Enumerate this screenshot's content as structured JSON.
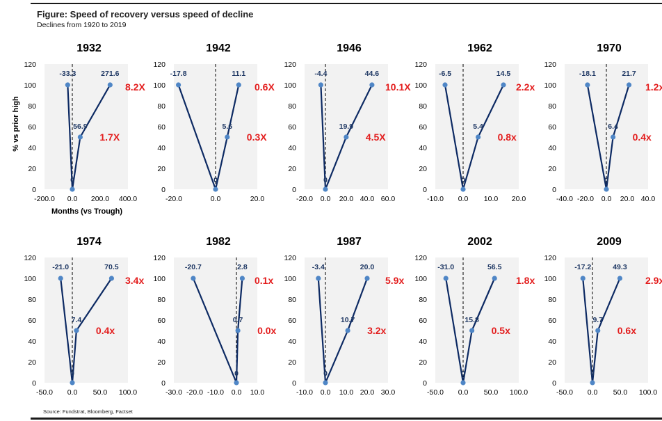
{
  "figure": {
    "title": "Figure: Speed of recovery versus speed of decline",
    "subtitle": "Declines from 1920 to 2019",
    "source": "Source: Fundstrat, Bloomberg, Factset",
    "y_axis_label": "% vs prior high",
    "x_axis_label": "Months (vs Trough)"
  },
  "colors": {
    "line": "#0d2a63",
    "marker": "#4f86c6",
    "ratio_text": "#e31d1d",
    "data_label": "#1f3864",
    "plot_bg": "#f2f2f2"
  },
  "chart_data": [
    {
      "type": "line",
      "title": "1932",
      "x": [
        -33.3,
        0,
        56.9,
        271.6
      ],
      "y": [
        100,
        0,
        50,
        100
      ],
      "data_labels": [
        "-33.3",
        "0",
        "56.9",
        "271.6"
      ],
      "ratio_50": "1.7X",
      "ratio_100": "8.2X",
      "xlim": [
        -200,
        400
      ],
      "xticks": [
        "-200.0",
        "0.0",
        "200.0",
        "400.0"
      ],
      "ylim": [
        0,
        120
      ],
      "yticks": [
        "0",
        "20",
        "40",
        "60",
        "80",
        "100",
        "120"
      ]
    },
    {
      "type": "line",
      "title": "1942",
      "x": [
        -17.8,
        0,
        5.6,
        11.1
      ],
      "y": [
        100,
        0,
        50,
        100
      ],
      "data_labels": [
        "-17.8",
        "0",
        "5.6",
        "11.1"
      ],
      "ratio_50": "0.3X",
      "ratio_100": "0.6X",
      "xlim": [
        -20,
        20
      ],
      "xticks": [
        "-20.0",
        "0.0",
        "20.0"
      ],
      "ylim": [
        0,
        120
      ],
      "yticks": [
        "0",
        "20",
        "40",
        "60",
        "80",
        "100",
        "120"
      ]
    },
    {
      "type": "line",
      "title": "1946",
      "x": [
        -4.4,
        0,
        19.9,
        44.6
      ],
      "y": [
        100,
        0,
        50,
        100
      ],
      "data_labels": [
        "-4.4",
        "0",
        "19.9",
        "44.6"
      ],
      "ratio_50": "4.5X",
      "ratio_100": "10.1X",
      "xlim": [
        -20,
        60
      ],
      "xticks": [
        "-20.0",
        "0.0",
        "20.0",
        "40.0",
        "60.0"
      ],
      "ylim": [
        0,
        120
      ],
      "yticks": [
        "0",
        "20",
        "40",
        "60",
        "80",
        "100",
        "120"
      ]
    },
    {
      "type": "line",
      "title": "1962",
      "x": [
        -6.5,
        0,
        5.4,
        14.5
      ],
      "y": [
        100,
        0,
        50,
        100
      ],
      "data_labels": [
        "-6.5",
        "0",
        "5.4",
        "14.5"
      ],
      "ratio_50": "0.8x",
      "ratio_100": "2.2x",
      "xlim": [
        -10,
        20
      ],
      "xticks": [
        "-10.0",
        "0.0",
        "10.0",
        "20.0"
      ],
      "ylim": [
        0,
        120
      ],
      "yticks": [
        "0",
        "20",
        "40",
        "60",
        "80",
        "100",
        "120"
      ]
    },
    {
      "type": "line",
      "title": "1970",
      "x": [
        -18.1,
        0,
        6.4,
        21.7
      ],
      "y": [
        100,
        0,
        50,
        100
      ],
      "data_labels": [
        "-18.1",
        "0",
        "6.4",
        "21.7"
      ],
      "ratio_50": "0.4x",
      "ratio_100": "1.2x",
      "xlim": [
        -40,
        40
      ],
      "xticks": [
        "-40.0",
        "-20.0",
        "0.0",
        "20.0",
        "40.0"
      ],
      "ylim": [
        0,
        120
      ],
      "yticks": [
        "0",
        "20",
        "40",
        "60",
        "80",
        "100",
        "120"
      ]
    },
    {
      "type": "line",
      "title": "1974",
      "x": [
        -21.0,
        0,
        7.4,
        70.5
      ],
      "y": [
        100,
        0,
        50,
        100
      ],
      "data_labels": [
        "-21.0",
        "0",
        "7.4",
        "70.5"
      ],
      "ratio_50": "0.4x",
      "ratio_100": "3.4x",
      "xlim": [
        -50,
        100
      ],
      "xticks": [
        "-50.0",
        "0.0",
        "50.0",
        "100.0"
      ],
      "ylim": [
        0,
        120
      ],
      "yticks": [
        "0",
        "20",
        "40",
        "60",
        "80",
        "100",
        "120"
      ]
    },
    {
      "type": "line",
      "title": "1982",
      "x": [
        -20.7,
        0,
        0.7,
        2.8
      ],
      "y": [
        100,
        0,
        50,
        100
      ],
      "data_labels": [
        "-20.7",
        "0",
        "0.7",
        "2.8"
      ],
      "ratio_50": "0.0x",
      "ratio_100": "0.1x",
      "xlim": [
        -30,
        10
      ],
      "xticks": [
        "-30.0",
        "-20.0",
        "-10.0",
        "0.0",
        "10.0"
      ],
      "ylim": [
        0,
        120
      ],
      "yticks": [
        "0",
        "20",
        "40",
        "60",
        "80",
        "100",
        "120"
      ]
    },
    {
      "type": "line",
      "title": "1987",
      "x": [
        -3.4,
        0,
        10.7,
        20.0
      ],
      "y": [
        100,
        0,
        50,
        100
      ],
      "data_labels": [
        "-3.4",
        "0",
        "10.7",
        "20.0"
      ],
      "ratio_50": "3.2x",
      "ratio_100": "5.9x",
      "xlim": [
        -10,
        30
      ],
      "xticks": [
        "-10.0",
        "0.0",
        "10.0",
        "20.0",
        "30.0"
      ],
      "ylim": [
        0,
        120
      ],
      "yticks": [
        "0",
        "20",
        "40",
        "60",
        "80",
        "100",
        "120"
      ]
    },
    {
      "type": "line",
      "title": "2002",
      "x": [
        -31.0,
        0,
        15.8,
        56.5
      ],
      "y": [
        100,
        0,
        50,
        100
      ],
      "data_labels": [
        "-31.0",
        "0",
        "15.8",
        "56.5"
      ],
      "ratio_50": "0.5x",
      "ratio_100": "1.8x",
      "xlim": [
        -50,
        100
      ],
      "xticks": [
        "-50.0",
        "0.0",
        "50.0",
        "100.0"
      ],
      "ylim": [
        0,
        120
      ],
      "yticks": [
        "0",
        "20",
        "40",
        "60",
        "80",
        "100",
        "120"
      ]
    },
    {
      "type": "line",
      "title": "2009",
      "x": [
        -17.2,
        0,
        9.7,
        49.3
      ],
      "y": [
        100,
        0,
        50,
        100
      ],
      "data_labels": [
        "-17.2",
        "0",
        "9.7",
        "49.3"
      ],
      "ratio_50": "0.6x",
      "ratio_100": "2.9x",
      "xlim": [
        -50,
        100
      ],
      "xticks": [
        "-50.0",
        "0.0",
        "50.0",
        "100.0"
      ],
      "ylim": [
        0,
        120
      ],
      "yticks": [
        "0",
        "20",
        "40",
        "60",
        "80",
        "100",
        "120"
      ]
    }
  ]
}
